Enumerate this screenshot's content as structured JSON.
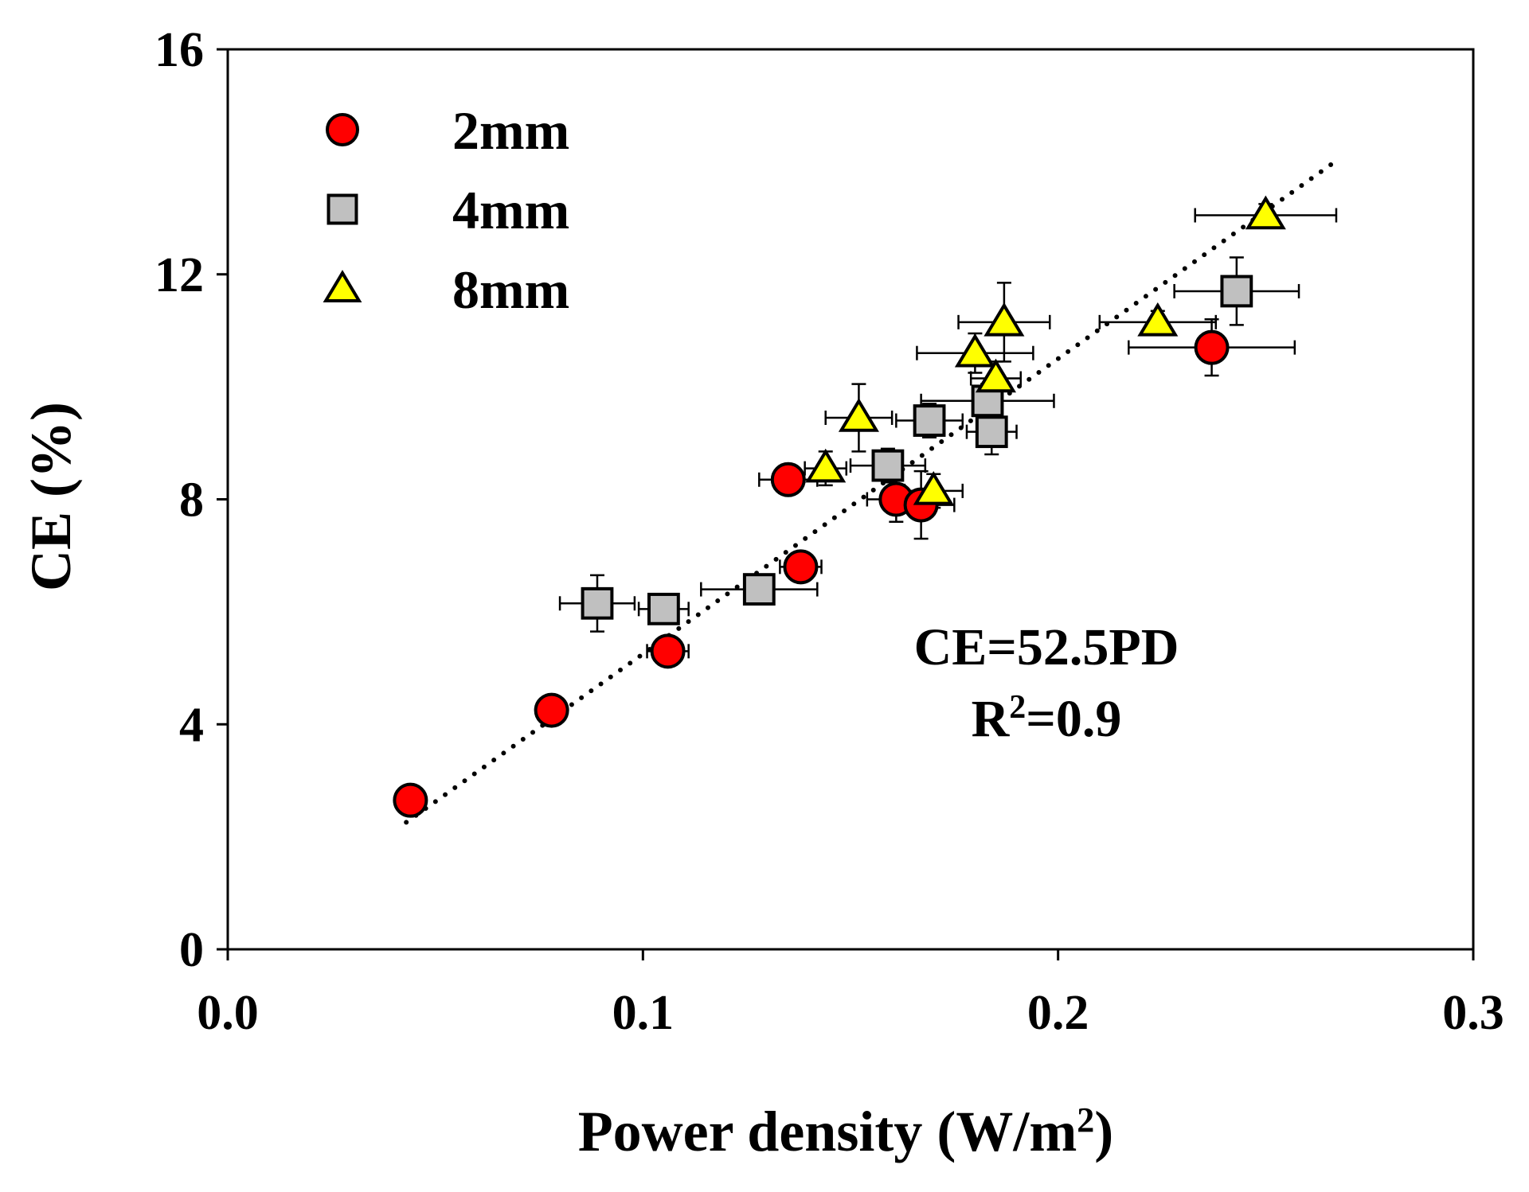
{
  "chart_data": {
    "type": "scatter",
    "title": "",
    "xlabel": "Power density (W/m",
    "xlabel_sup": "2",
    "xlabel_end": ")",
    "ylabel": "CE (%)",
    "xlim": [
      0.0,
      0.3
    ],
    "ylim": [
      0,
      16
    ],
    "x_ticks": [
      0.0,
      0.1,
      0.2,
      0.3
    ],
    "x_tick_labels": [
      "0.0",
      "0.1",
      "0.2",
      "0.3"
    ],
    "y_ticks": [
      0,
      4,
      8,
      12,
      16
    ],
    "y_tick_labels": [
      "0",
      "4",
      "8",
      "12",
      "16"
    ],
    "grid": false,
    "legend_position": "top-left",
    "series": [
      {
        "name": "2mm",
        "marker": "circle",
        "color": "#ff0000",
        "points": [
          {
            "x": 0.044,
            "y": 2.65,
            "xerr": 0.003,
            "yerr": 0.12
          },
          {
            "x": 0.078,
            "y": 4.25,
            "xerr": 0.003,
            "yerr": 0.15
          },
          {
            "x": 0.106,
            "y": 5.3,
            "xerr": 0.005,
            "yerr": 0.25
          },
          {
            "x": 0.135,
            "y": 8.35,
            "xerr": 0.007,
            "yerr": 0.25
          },
          {
            "x": 0.138,
            "y": 6.8,
            "xerr": 0.005,
            "yerr": 0.2
          },
          {
            "x": 0.161,
            "y": 8.0,
            "xerr": 0.007,
            "yerr": 0.4
          },
          {
            "x": 0.167,
            "y": 7.9,
            "xerr": 0.008,
            "yerr": 0.6
          },
          {
            "x": 0.237,
            "y": 10.7,
            "xerr": 0.02,
            "yerr": 0.5
          }
        ]
      },
      {
        "name": "4mm",
        "marker": "square",
        "color": "#c0c0c0",
        "points": [
          {
            "x": 0.089,
            "y": 6.15,
            "xerr": 0.009,
            "yerr": 0.5
          },
          {
            "x": 0.105,
            "y": 6.05,
            "xerr": 0.006,
            "yerr": 0.2
          },
          {
            "x": 0.128,
            "y": 6.4,
            "xerr": 0.014,
            "yerr": 0.2
          },
          {
            "x": 0.159,
            "y": 8.6,
            "xerr": 0.009,
            "yerr": 0.3
          },
          {
            "x": 0.169,
            "y": 9.4,
            "xerr": 0.008,
            "yerr": 0.3
          },
          {
            "x": 0.183,
            "y": 9.75,
            "xerr": 0.016,
            "yerr": 0.3
          },
          {
            "x": 0.184,
            "y": 9.2,
            "xerr": 0.006,
            "yerr": 0.4
          },
          {
            "x": 0.243,
            "y": 11.7,
            "xerr": 0.015,
            "yerr": 0.6
          }
        ]
      },
      {
        "name": "8mm",
        "marker": "triangle",
        "color": "#ffff00",
        "points": [
          {
            "x": 0.144,
            "y": 8.55,
            "xerr": 0.005,
            "yerr": 0.3
          },
          {
            "x": 0.152,
            "y": 9.45,
            "xerr": 0.008,
            "yerr": 0.6
          },
          {
            "x": 0.17,
            "y": 8.15,
            "xerr": 0.007,
            "yerr": 0.3
          },
          {
            "x": 0.18,
            "y": 10.6,
            "xerr": 0.014,
            "yerr": 0.35
          },
          {
            "x": 0.185,
            "y": 10.15,
            "xerr": 0.006,
            "yerr": 0.3
          },
          {
            "x": 0.187,
            "y": 11.15,
            "xerr": 0.011,
            "yerr": 0.7
          },
          {
            "x": 0.224,
            "y": 11.15,
            "xerr": 0.014,
            "yerr": 0.2
          },
          {
            "x": 0.25,
            "y": 13.05,
            "xerr": 0.017,
            "yerr": 0.2
          }
        ]
      }
    ],
    "fit_line": {
      "slope": 52.5,
      "x_start": 0.043,
      "x_end": 0.267,
      "style": "dotted"
    },
    "annotations": {
      "equation": "CE=52.5PD",
      "r2_prefix": "R",
      "r2_sup": "2",
      "r2_value": "=0.9"
    }
  }
}
